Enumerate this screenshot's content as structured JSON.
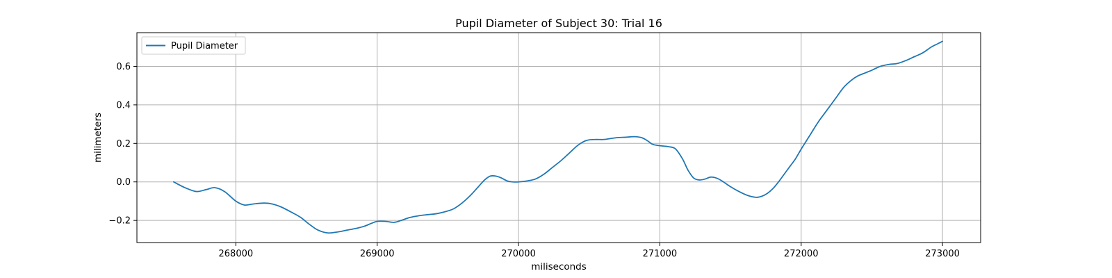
{
  "chart_data": {
    "type": "line",
    "title": "Pupil Diameter of Subject 30: Trial 16",
    "xlabel": "miliseconds",
    "ylabel": "milimeters",
    "xlim": [
      267300,
      273270
    ],
    "ylim": [
      -0.315,
      0.775
    ],
    "x_ticks": [
      268000,
      269000,
      270000,
      271000,
      272000,
      273000
    ],
    "x_tick_labels": [
      "268000",
      "269000",
      "270000",
      "271000",
      "272000",
      "273000"
    ],
    "y_ticks": [
      -0.2,
      0.0,
      0.2,
      0.4,
      0.6
    ],
    "y_tick_labels": [
      "−0.2",
      "0.0",
      "0.2",
      "0.4",
      "0.6"
    ],
    "grid": true,
    "legend_position": "top-left",
    "series": [
      {
        "name": "Pupil Diameter",
        "color": "#1f77b4",
        "x": [
          267560,
          267640,
          267720,
          267790,
          267850,
          267920,
          268000,
          268060,
          268120,
          268200,
          268260,
          268320,
          268400,
          268460,
          268520,
          268580,
          268650,
          268720,
          268790,
          268860,
          268910,
          268960,
          269000,
          269060,
          269120,
          269170,
          269230,
          269300,
          269360,
          269420,
          269480,
          269540,
          269600,
          269660,
          269710,
          269760,
          269800,
          269840,
          269880,
          269920,
          269960,
          270000,
          270060,
          270120,
          270180,
          270240,
          270300,
          270360,
          270420,
          270480,
          270540,
          270600,
          270650,
          270700,
          270760,
          270820,
          270870,
          270910,
          270950,
          271000,
          271060,
          271110,
          271160,
          271200,
          271240,
          271280,
          271320,
          271360,
          271400,
          271440,
          271500,
          271560,
          271620,
          271680,
          271720,
          271760,
          271800,
          271840,
          271880,
          271920,
          271960,
          272000,
          272060,
          272120,
          272180,
          272240,
          272300,
          272350,
          272400,
          272450,
          272500,
          272560,
          272620,
          272680,
          272740,
          272800,
          272860,
          272920,
          272960,
          273000
        ],
        "values": [
          0.0,
          -0.03,
          -0.05,
          -0.04,
          -0.03,
          -0.05,
          -0.1,
          -0.12,
          -0.115,
          -0.11,
          -0.115,
          -0.13,
          -0.16,
          -0.185,
          -0.22,
          -0.25,
          -0.265,
          -0.26,
          -0.25,
          -0.24,
          -0.23,
          -0.215,
          -0.205,
          -0.205,
          -0.21,
          -0.2,
          -0.185,
          -0.175,
          -0.17,
          -0.165,
          -0.155,
          -0.14,
          -0.11,
          -0.07,
          -0.03,
          0.01,
          0.03,
          0.03,
          0.02,
          0.005,
          0.0,
          0.0,
          0.005,
          0.015,
          0.04,
          0.075,
          0.11,
          0.15,
          0.19,
          0.215,
          0.22,
          0.22,
          0.225,
          0.23,
          0.232,
          0.235,
          0.23,
          0.215,
          0.195,
          0.188,
          0.183,
          0.172,
          0.12,
          0.06,
          0.02,
          0.01,
          0.015,
          0.025,
          0.02,
          0.005,
          -0.025,
          -0.05,
          -0.07,
          -0.08,
          -0.075,
          -0.06,
          -0.035,
          0.0,
          0.04,
          0.08,
          0.12,
          0.17,
          0.24,
          0.31,
          0.37,
          0.43,
          0.49,
          0.525,
          0.55,
          0.565,
          0.58,
          0.6,
          0.61,
          0.615,
          0.63,
          0.65,
          0.67,
          0.7,
          0.715,
          0.73
        ]
      }
    ]
  }
}
